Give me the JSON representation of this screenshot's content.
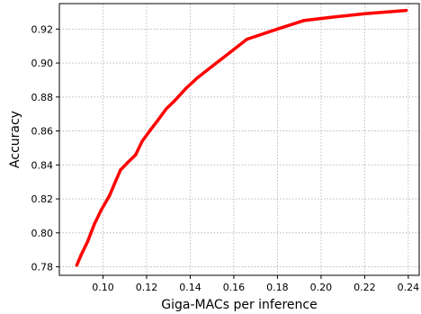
{
  "chart_data": {
    "type": "line",
    "title": "",
    "xlabel": "Giga-MACs per inference",
    "ylabel": "Accuracy",
    "xlim": [
      0.08,
      0.245
    ],
    "ylim": [
      0.775,
      0.935
    ],
    "xticks": [
      0.1,
      0.12,
      0.14,
      0.16,
      0.18,
      0.2,
      0.22,
      0.24
    ],
    "xtick_labels": [
      "0.10",
      "0.12",
      "0.14",
      "0.16",
      "0.18",
      "0.20",
      "0.22",
      "0.24"
    ],
    "yticks": [
      0.78,
      0.8,
      0.82,
      0.84,
      0.86,
      0.88,
      0.9,
      0.92
    ],
    "ytick_labels": [
      "0.78",
      "0.80",
      "0.82",
      "0.84",
      "0.86",
      "0.88",
      "0.90",
      "0.92"
    ],
    "grid": true,
    "legend": "none",
    "series": [
      {
        "color": "#ff0000",
        "x": [
          0.088,
          0.09,
          0.093,
          0.096,
          0.099,
          0.103,
          0.106,
          0.108,
          0.111,
          0.115,
          0.118,
          0.122,
          0.125,
          0.129,
          0.133,
          0.138,
          0.143,
          0.15,
          0.158,
          0.166,
          0.18,
          0.192,
          0.205,
          0.22,
          0.239
        ],
        "y": [
          0.781,
          0.787,
          0.795,
          0.805,
          0.813,
          0.822,
          0.831,
          0.837,
          0.841,
          0.846,
          0.854,
          0.861,
          0.866,
          0.873,
          0.878,
          0.885,
          0.891,
          0.898,
          0.906,
          0.914,
          0.92,
          0.925,
          0.927,
          0.929,
          0.931
        ]
      }
    ]
  }
}
